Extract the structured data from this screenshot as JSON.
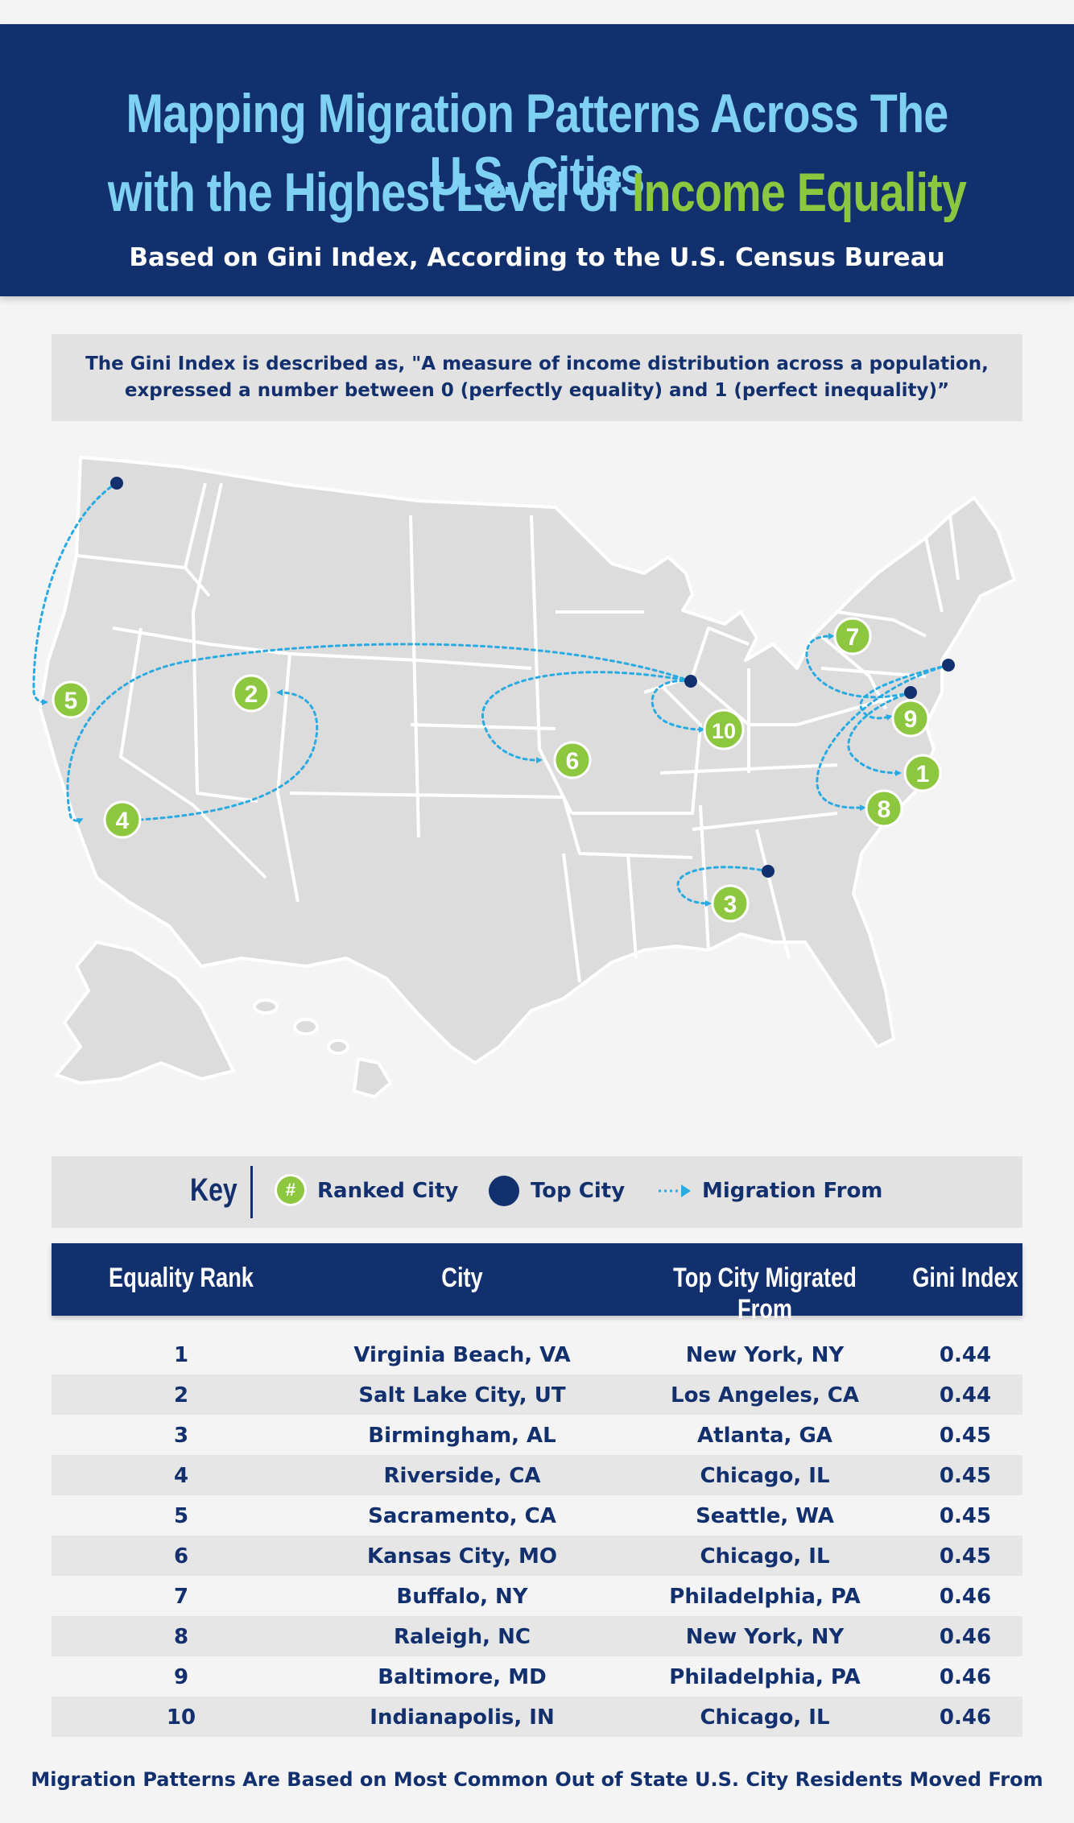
{
  "header": {
    "title_line1": "Mapping Migration Patterns Across The U.S. Cities",
    "title_line2_prefix": "with the Highest Level of ",
    "title_line2_highlight": "Income Equality",
    "subtitle": "Based on Gini Index, According to the U.S. Census Bureau"
  },
  "definition": {
    "line1": "The Gini Index is described as, \"A measure of income distribution across a population,",
    "line2": "expressed a number between 0 (perfectly equality) and 1 (perfect inequality)”"
  },
  "map": {
    "markers": [
      {
        "rank": "1",
        "city": "Virginia Beach, VA"
      },
      {
        "rank": "2",
        "city": "Salt Lake City, UT"
      },
      {
        "rank": "3",
        "city": "Birmingham, AL"
      },
      {
        "rank": "4",
        "city": "Riverside, CA"
      },
      {
        "rank": "5",
        "city": "Sacramento, CA"
      },
      {
        "rank": "6",
        "city": "Kansas City, MO"
      },
      {
        "rank": "7",
        "city": "Buffalo, NY"
      },
      {
        "rank": "8",
        "city": "Raleigh, NC"
      },
      {
        "rank": "9",
        "city": "Baltimore, MD"
      },
      {
        "rank": "10",
        "city": "Indianapolis, IN"
      }
    ],
    "colors": {
      "land": "#dcdcdc",
      "border": "#ffffff",
      "ranked": "#8dc63f",
      "top_city": "#13306e",
      "migration": "#29abe2"
    }
  },
  "key": {
    "title": "Key",
    "badge_symbol": "#",
    "ranked_label": "Ranked City",
    "top_label": "Top City",
    "migration_label": "Migration From"
  },
  "table": {
    "headers": [
      "Equality Rank",
      "City",
      "Top City Migrated From",
      "Gini Index"
    ],
    "rows": [
      [
        "1",
        "Virginia Beach, VA",
        "New York, NY",
        "0.44"
      ],
      [
        "2",
        "Salt Lake City, UT",
        "Los Angeles, CA",
        "0.44"
      ],
      [
        "3",
        "Birmingham, AL",
        "Atlanta, GA",
        "0.45"
      ],
      [
        "4",
        "Riverside, CA",
        "Chicago, IL",
        "0.45"
      ],
      [
        "5",
        "Sacramento, CA",
        "Seattle, WA",
        "0.45"
      ],
      [
        "6",
        "Kansas City, MO",
        "Chicago, IL",
        "0.45"
      ],
      [
        "7",
        "Buffalo, NY",
        "Philadelphia, PA",
        "0.46"
      ],
      [
        "8",
        "Raleigh, NC",
        "New York, NY",
        "0.46"
      ],
      [
        "9",
        "Baltimore, MD",
        "Philadelphia, PA",
        "0.46"
      ],
      [
        "10",
        "Indianapolis, IN",
        "Chicago, IL",
        "0.46"
      ]
    ]
  },
  "footer": "Migration Patterns Are Based on Most Common Out of State U.S. City Residents Moved From"
}
